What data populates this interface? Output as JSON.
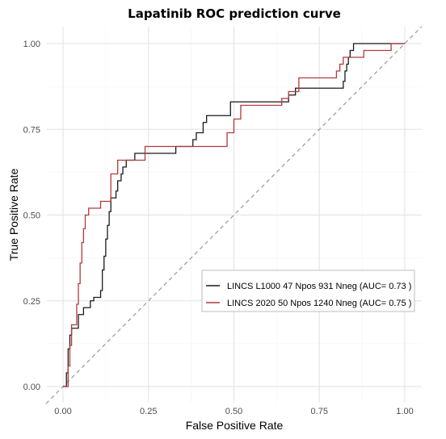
{
  "chart_data": {
    "type": "line",
    "title": "Lapatinib ROC prediction curve",
    "xlabel": "False Positive Rate",
    "ylabel": "True Positive Rate",
    "xlim": [
      0,
      1
    ],
    "ylim": [
      0,
      1
    ],
    "xticks": [
      "0.00",
      "0.25",
      "0.50",
      "0.75",
      "1.00"
    ],
    "yticks": [
      "0.00",
      "0.25",
      "0.50",
      "0.75",
      "1.00"
    ],
    "grid": true,
    "legend_position": "right",
    "diagonal_reference": {
      "style": "dashed",
      "color": "#999999"
    },
    "series": [
      {
        "name": "LINCS L1000 47 Npos  931 Nneg  (AUC= 0.73 )",
        "color": "#1a1a1a",
        "points": [
          [
            0.0,
            0.0
          ],
          [
            0.01,
            0.0
          ],
          [
            0.01,
            0.04
          ],
          [
            0.015,
            0.04
          ],
          [
            0.015,
            0.11
          ],
          [
            0.02,
            0.11
          ],
          [
            0.02,
            0.15
          ],
          [
            0.025,
            0.15
          ],
          [
            0.025,
            0.17
          ],
          [
            0.045,
            0.17
          ],
          [
            0.045,
            0.21
          ],
          [
            0.06,
            0.21
          ],
          [
            0.06,
            0.23
          ],
          [
            0.08,
            0.23
          ],
          [
            0.08,
            0.25
          ],
          [
            0.09,
            0.25
          ],
          [
            0.09,
            0.26
          ],
          [
            0.11,
            0.26
          ],
          [
            0.11,
            0.28
          ],
          [
            0.115,
            0.28
          ],
          [
            0.115,
            0.34
          ],
          [
            0.12,
            0.34
          ],
          [
            0.12,
            0.38
          ],
          [
            0.125,
            0.38
          ],
          [
            0.125,
            0.43
          ],
          [
            0.13,
            0.43
          ],
          [
            0.13,
            0.47
          ],
          [
            0.135,
            0.47
          ],
          [
            0.135,
            0.51
          ],
          [
            0.14,
            0.51
          ],
          [
            0.14,
            0.55
          ],
          [
            0.155,
            0.55
          ],
          [
            0.155,
            0.57
          ],
          [
            0.16,
            0.57
          ],
          [
            0.16,
            0.6
          ],
          [
            0.17,
            0.6
          ],
          [
            0.17,
            0.62
          ],
          [
            0.175,
            0.62
          ],
          [
            0.175,
            0.64
          ],
          [
            0.185,
            0.64
          ],
          [
            0.185,
            0.66
          ],
          [
            0.21,
            0.66
          ],
          [
            0.21,
            0.68
          ],
          [
            0.33,
            0.68
          ],
          [
            0.33,
            0.7
          ],
          [
            0.38,
            0.7
          ],
          [
            0.38,
            0.72
          ],
          [
            0.39,
            0.72
          ],
          [
            0.39,
            0.74
          ],
          [
            0.41,
            0.74
          ],
          [
            0.41,
            0.77
          ],
          [
            0.42,
            0.77
          ],
          [
            0.42,
            0.79
          ],
          [
            0.49,
            0.79
          ],
          [
            0.49,
            0.83
          ],
          [
            0.66,
            0.83
          ],
          [
            0.66,
            0.85
          ],
          [
            0.68,
            0.85
          ],
          [
            0.68,
            0.87
          ],
          [
            0.82,
            0.87
          ],
          [
            0.82,
            0.89
          ],
          [
            0.825,
            0.89
          ],
          [
            0.825,
            0.92
          ],
          [
            0.83,
            0.92
          ],
          [
            0.83,
            0.94
          ],
          [
            0.835,
            0.94
          ],
          [
            0.835,
            0.96
          ],
          [
            0.84,
            0.96
          ],
          [
            0.84,
            0.98
          ],
          [
            0.85,
            0.98
          ],
          [
            0.85,
            1.0
          ],
          [
            1.0,
            1.0
          ]
        ]
      },
      {
        "name": "LINCS 2020 50 Npos  1240 Nneg  (AUC= 0.75 )",
        "color": "#b23a3a",
        "points": [
          [
            0.0,
            0.0
          ],
          [
            0.015,
            0.0
          ],
          [
            0.015,
            0.06
          ],
          [
            0.02,
            0.06
          ],
          [
            0.02,
            0.12
          ],
          [
            0.025,
            0.12
          ],
          [
            0.025,
            0.18
          ],
          [
            0.04,
            0.18
          ],
          [
            0.04,
            0.24
          ],
          [
            0.045,
            0.24
          ],
          [
            0.045,
            0.3
          ],
          [
            0.05,
            0.3
          ],
          [
            0.05,
            0.36
          ],
          [
            0.055,
            0.36
          ],
          [
            0.055,
            0.42
          ],
          [
            0.06,
            0.42
          ],
          [
            0.06,
            0.46
          ],
          [
            0.065,
            0.46
          ],
          [
            0.065,
            0.5
          ],
          [
            0.075,
            0.5
          ],
          [
            0.075,
            0.52
          ],
          [
            0.11,
            0.52
          ],
          [
            0.11,
            0.54
          ],
          [
            0.14,
            0.54
          ],
          [
            0.14,
            0.62
          ],
          [
            0.16,
            0.62
          ],
          [
            0.16,
            0.66
          ],
          [
            0.24,
            0.66
          ],
          [
            0.24,
            0.7
          ],
          [
            0.48,
            0.7
          ],
          [
            0.48,
            0.74
          ],
          [
            0.5,
            0.74
          ],
          [
            0.5,
            0.78
          ],
          [
            0.52,
            0.78
          ],
          [
            0.52,
            0.82
          ],
          [
            0.64,
            0.82
          ],
          [
            0.64,
            0.84
          ],
          [
            0.66,
            0.84
          ],
          [
            0.66,
            0.86
          ],
          [
            0.69,
            0.86
          ],
          [
            0.69,
            0.9
          ],
          [
            0.8,
            0.9
          ],
          [
            0.8,
            0.92
          ],
          [
            0.81,
            0.92
          ],
          [
            0.81,
            0.94
          ],
          [
            0.82,
            0.94
          ],
          [
            0.82,
            0.96
          ],
          [
            0.88,
            0.96
          ],
          [
            0.88,
            0.98
          ],
          [
            0.96,
            0.98
          ],
          [
            0.96,
            1.0
          ],
          [
            1.0,
            1.0
          ]
        ]
      }
    ]
  }
}
